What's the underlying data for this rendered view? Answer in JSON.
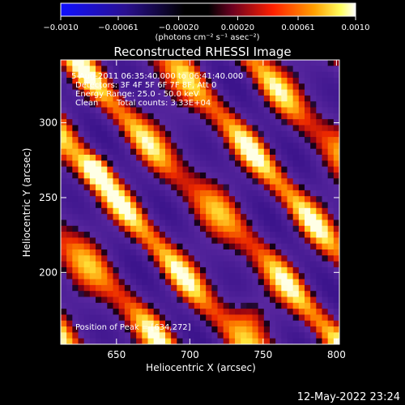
{
  "colorbar": {
    "ticks": [
      "−0.0010",
      "−0.00061",
      "−0.00020",
      "0.00020",
      "0.00061",
      "0.0010"
    ],
    "tick_values": [
      -0.001,
      -0.00061,
      -0.0002,
      0.0002,
      0.00061,
      0.001
    ],
    "range": [
      -0.001,
      0.001
    ],
    "unit_label": "(photons cm⁻² s⁻¹ asec⁻²)"
  },
  "chart_data": {
    "type": "heatmap",
    "title": "Reconstructed RHESSI Image",
    "xlabel": "Heliocentric X (arcsec)",
    "ylabel": "Heliocentric Y (arcsec)",
    "xlim": [
      612,
      802
    ],
    "ylim": [
      152,
      342
    ],
    "x_ticks": [
      650,
      700,
      750,
      800
    ],
    "y_ticks": [
      200,
      250,
      300
    ],
    "colormap": [
      "#1010ff",
      "#000000",
      "#502090",
      "#ff2000",
      "#ffc000",
      "#ffffff"
    ],
    "peak_position": [
      634,
      272
    ],
    "annotations": {
      "time_range": "5-Aug-2011 06:35:40.000 to 06:41:40.000",
      "detectors": "Detectors: 3F 4F 5F 6F 7F 8F, Att 0",
      "energy": "Energy Range: 25.0 - 50.0 keV",
      "algorithm": "Clean",
      "counts": "Total counts: 3.33E+04",
      "peak": "Position of Peak = [634,272]"
    }
  },
  "footer": {
    "date": "12-May-2022 23:24"
  }
}
